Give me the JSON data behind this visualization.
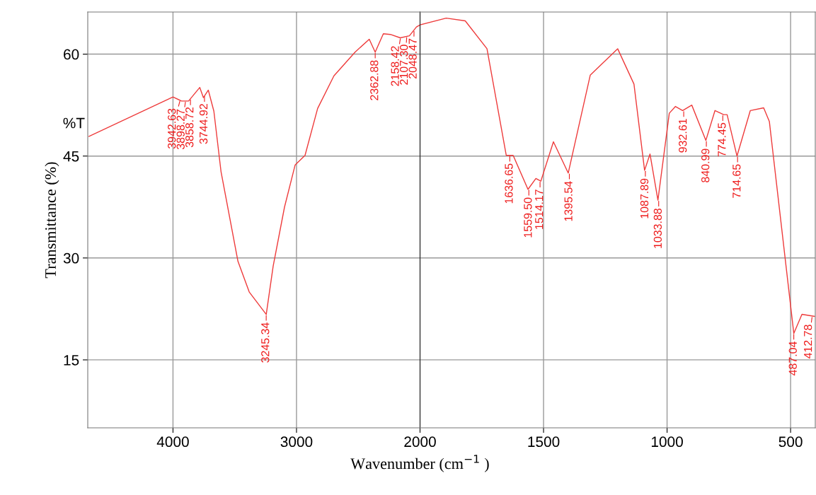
{
  "chart_data": [
    {
      "type": "line",
      "ylabel": "Transmittance (%)",
      "xlim": [
        4690,
        2000
      ],
      "xticks": [
        4000,
        3000
      ],
      "ylim": [
        5,
        66.2
      ],
      "yticks": [
        15,
        30,
        45,
        60
      ],
      "grid": true,
      "marker": "none",
      "line_style": "solid",
      "series": [
        {
          "color": "#ee3b3b",
          "x": [
            4680,
            4000,
            3931,
            3874,
            3783,
            3754,
            3714,
            3669,
            3611,
            3474,
            3383,
            3245,
            3189,
            3097,
            3011,
            2931,
            2829,
            2697,
            2526,
            2411,
            2363,
            2297,
            2240,
            2160,
            2086,
            2029,
            2000
          ],
          "values": [
            47.9,
            53.7,
            53.1,
            53.1,
            55.1,
            53.6,
            54.7,
            51.6,
            42.7,
            29.5,
            25.0,
            21.7,
            28.8,
            37.5,
            43.7,
            45.1,
            52.0,
            56.8,
            60.3,
            62.2,
            60.3,
            63.0,
            62.9,
            62.4,
            62.7,
            64.0,
            64.3
          ]
        }
      ],
      "annotations": [
        "%T",
        {
          "text": "3942.63",
          "x": 3942.63,
          "y": 53.2
        },
        {
          "text": "3898.27",
          "x": 3898.27,
          "y": 53.1
        },
        {
          "text": "3858.72",
          "x": 3858.72,
          "y": 53.4
        },
        {
          "text": "3744.92",
          "x": 3744.92,
          "y": 53.9
        },
        {
          "text": "3245.34",
          "x": 3245.34,
          "y": 21.7
        },
        {
          "text": "2362.88",
          "x": 2362.88,
          "y": 60.3
        },
        {
          "text": "2158.42",
          "x": 2158.42,
          "y": 62.4
        },
        {
          "text": "2107.30",
          "x": 2107.3,
          "y": 62.6
        },
        {
          "text": "2048.47",
          "x": 2048.47,
          "y": 63.5
        }
      ]
    },
    {
      "type": "line",
      "xlabel": "Wavenumber (cm$^{−1}$ )",
      "xlim": [
        2000,
        400
      ],
      "xticks": [
        2000,
        1500,
        1000,
        500
      ],
      "ylim": [
        5,
        66.2
      ],
      "yticks": [
        15,
        30,
        45,
        60
      ],
      "tick_labels": "x",
      "grid": true,
      "marker": "none",
      "line_style": "solid",
      "series": [
        {
          "color": "#ee3b3b",
          "x": [
            2000,
            1894,
            1817,
            1729,
            1651,
            1623,
            1563,
            1531,
            1511,
            1460,
            1400,
            1311,
            1200,
            1134,
            1091,
            1069,
            1037,
            991,
            966,
            937,
            900,
            843,
            806,
            771,
            757,
            717,
            663,
            609,
            586,
            487,
            454,
            403
          ],
          "values": [
            64.3,
            65.3,
            64.9,
            60.8,
            45.1,
            45.1,
            40.1,
            41.7,
            41.3,
            47.1,
            42.5,
            56.9,
            60.8,
            55.6,
            42.9,
            45.3,
            38.5,
            51.3,
            52.3,
            51.7,
            52.5,
            47.3,
            51.7,
            51.1,
            51.1,
            45.0,
            51.7,
            52.1,
            50.1,
            18.9,
            21.7,
            21.4
          ]
        }
      ],
      "annotations": [
        {
          "text": "1636.65",
          "x": 1636.65,
          "y": 45.1
        },
        {
          "text": "1559.50",
          "x": 1559.5,
          "y": 40.1
        },
        {
          "text": "1514.17",
          "x": 1514.17,
          "y": 41.3
        },
        {
          "text": "1395.54",
          "x": 1395.54,
          "y": 42.5
        },
        {
          "text": "1087.89",
          "x": 1087.89,
          "y": 42.9
        },
        {
          "text": "1033.88",
          "x": 1033.88,
          "y": 38.5
        },
        {
          "text": "932.61",
          "x": 932.61,
          "y": 51.7
        },
        {
          "text": "840.99",
          "x": 840.99,
          "y": 47.3
        },
        {
          "text": "774.45",
          "x": 774.45,
          "y": 51.1
        },
        {
          "text": "714.65",
          "x": 714.65,
          "y": 45.0
        },
        {
          "text": "487.04",
          "x": 487.04,
          "y": 18.9
        },
        {
          "text": "412.78",
          "x": 412.78,
          "y": 21.4
        }
      ]
    }
  ]
}
